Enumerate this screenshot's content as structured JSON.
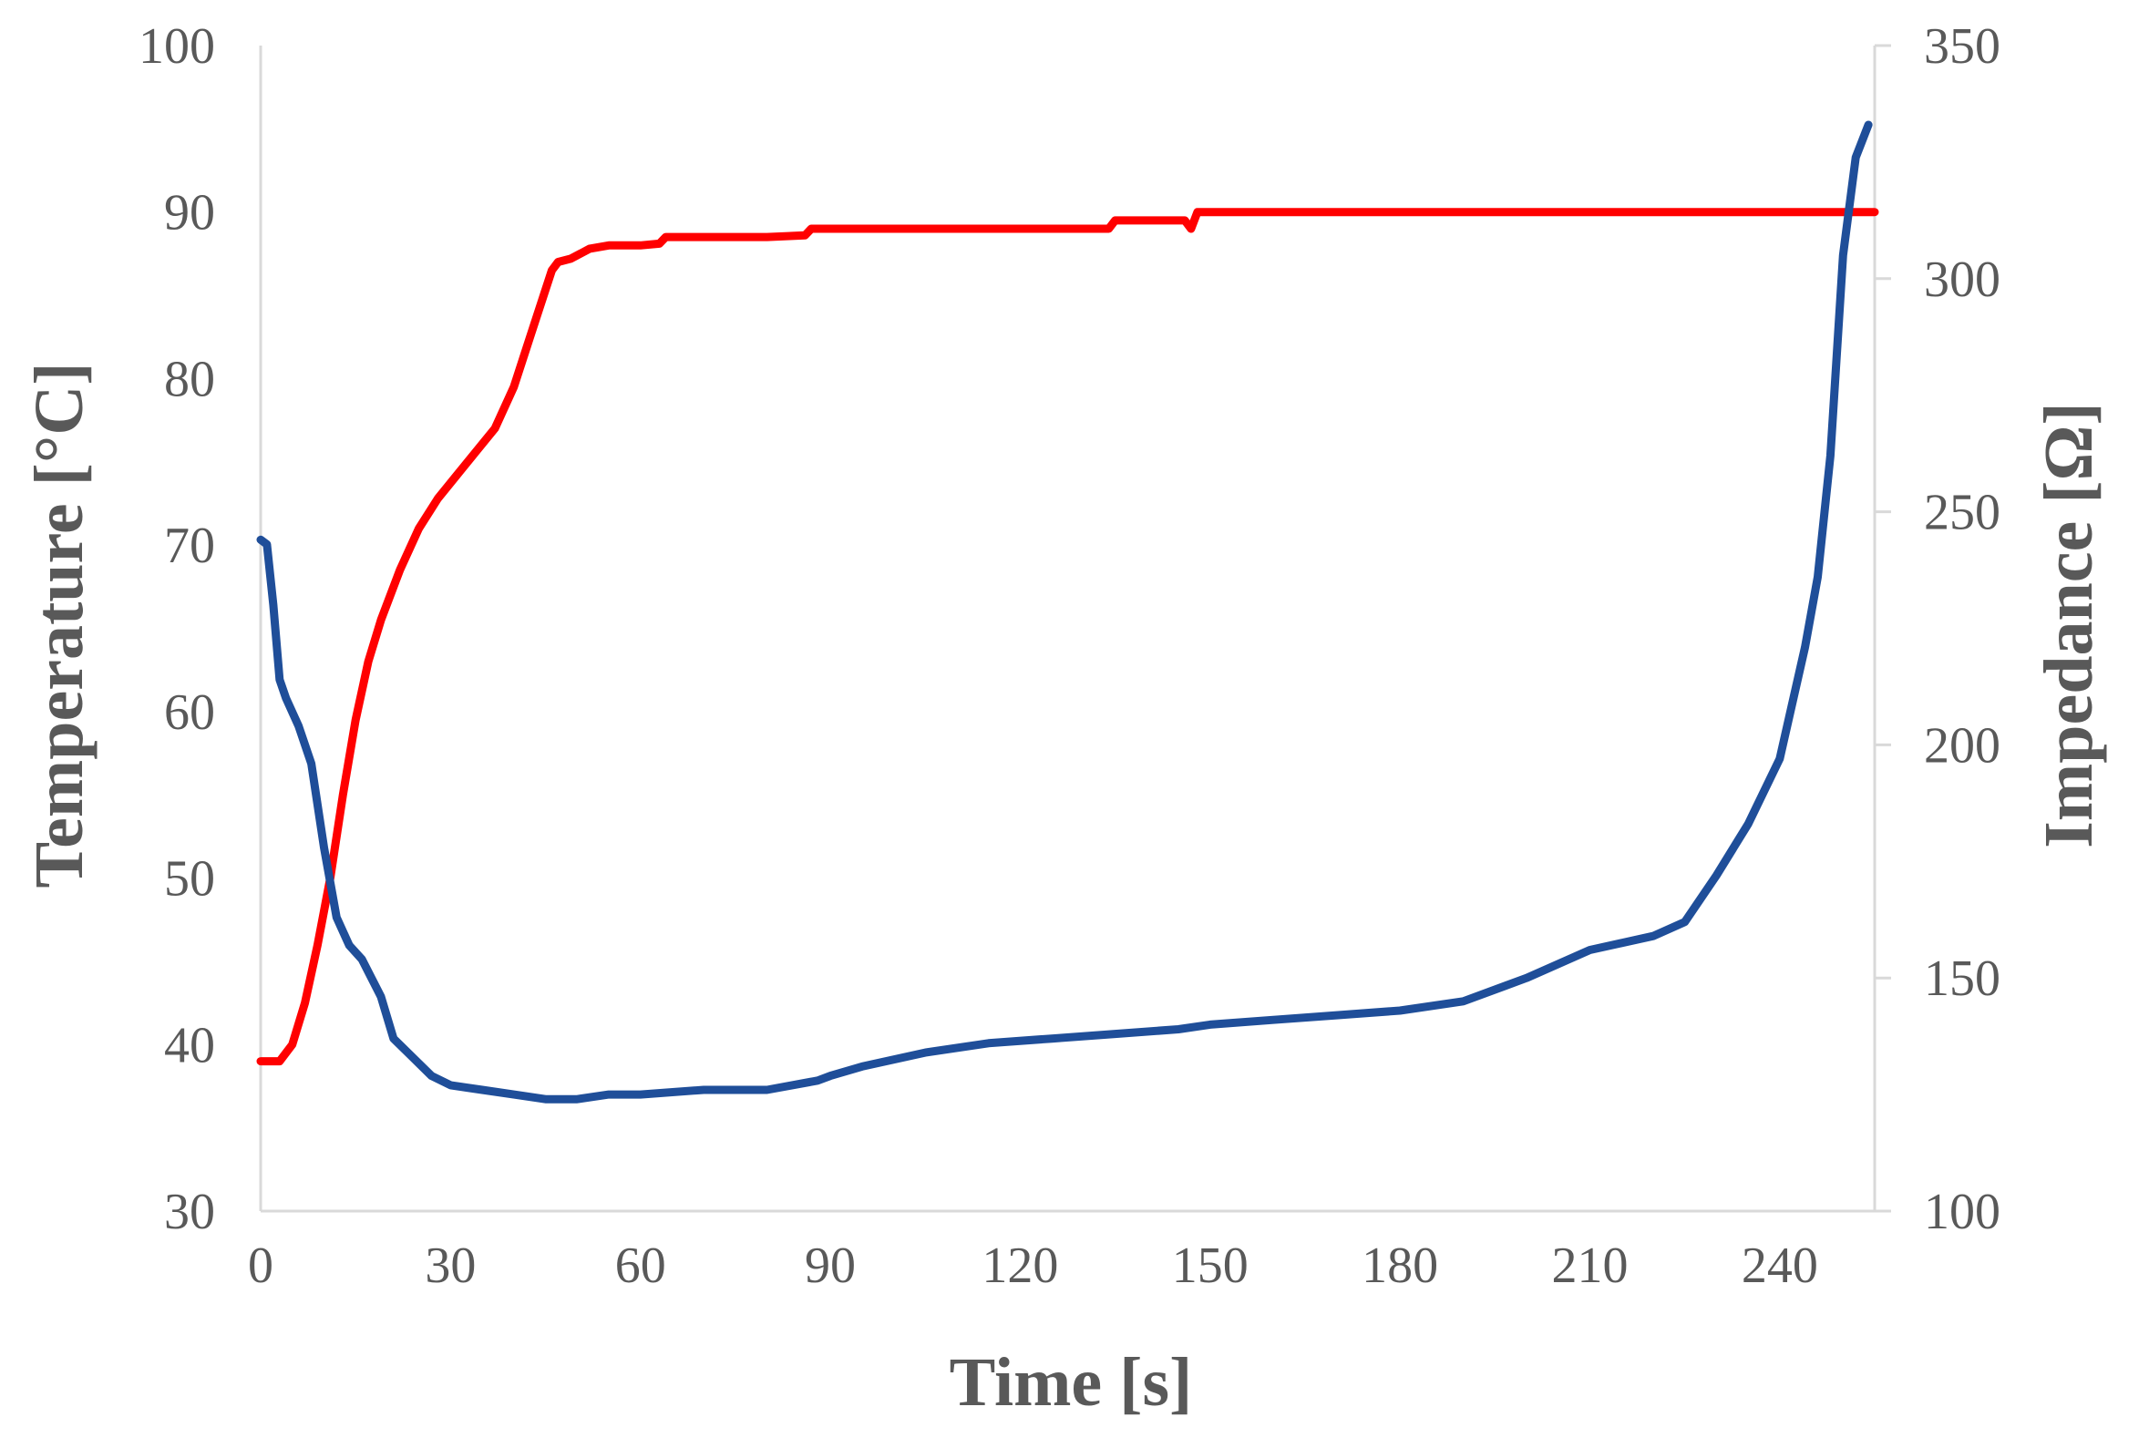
{
  "chart_data": {
    "type": "line",
    "title": "",
    "xlabel": "Time [s]",
    "ylabel": "Temperature [°C]",
    "y2label": "Impedance [Ω]",
    "xlim": [
      0,
      255
    ],
    "ylim": [
      30,
      100
    ],
    "y2lim": [
      100,
      350
    ],
    "x_ticks": [
      0,
      30,
      60,
      90,
      120,
      150,
      180,
      210,
      240
    ],
    "y_ticks": [
      30,
      40,
      50,
      60,
      70,
      80,
      90,
      100
    ],
    "y2_ticks": [
      100,
      150,
      200,
      250,
      300,
      350
    ],
    "grid": false,
    "legend": "none",
    "series": [
      {
        "axis": "left",
        "color": "#ff0000",
        "x": [
          0,
          3,
          5,
          7,
          9,
          11,
          13,
          15,
          17,
          19,
          22,
          25,
          28,
          31,
          34,
          37,
          40,
          43,
          46,
          47,
          49,
          52,
          55,
          60,
          63,
          64,
          70,
          80,
          86,
          87,
          100,
          120,
          134,
          135,
          145,
          146,
          147,
          148,
          150,
          160,
          200,
          230,
          255
        ],
        "y": [
          39,
          39,
          40,
          42.5,
          46,
          50,
          55,
          59.5,
          63,
          65.5,
          68.5,
          71,
          72.8,
          74.2,
          75.6,
          77,
          79.5,
          83,
          86.5,
          87,
          87.2,
          87.8,
          88,
          88,
          88.1,
          88.5,
          88.5,
          88.5,
          88.6,
          89,
          89,
          89,
          89,
          89.5,
          89.5,
          89.5,
          89,
          90,
          90,
          90,
          90,
          90,
          90
        ]
      },
      {
        "axis": "right",
        "color": "#1f4e99",
        "x": [
          0,
          1,
          2,
          3,
          4,
          6,
          8,
          10,
          12,
          14,
          16,
          19,
          21,
          24,
          27,
          30,
          35,
          40,
          45,
          50,
          55,
          60,
          70,
          80,
          88,
          90,
          95,
          105,
          115,
          125,
          135,
          145,
          150,
          160,
          170,
          180,
          190,
          200,
          210,
          220,
          225,
          230,
          235,
          240,
          244,
          246,
          248,
          250,
          252,
          254
        ],
        "y": [
          244,
          243,
          230,
          214,
          210,
          204,
          196,
          178,
          163,
          157,
          154,
          146,
          137,
          133,
          129,
          127,
          126,
          125,
          124,
          124,
          125,
          125,
          126,
          126,
          128,
          129,
          131,
          134,
          136,
          137,
          138,
          139,
          140,
          141,
          142,
          143,
          145,
          150,
          156,
          159,
          162,
          172,
          183,
          197,
          221,
          236,
          262,
          305,
          326,
          333
        ]
      }
    ]
  }
}
